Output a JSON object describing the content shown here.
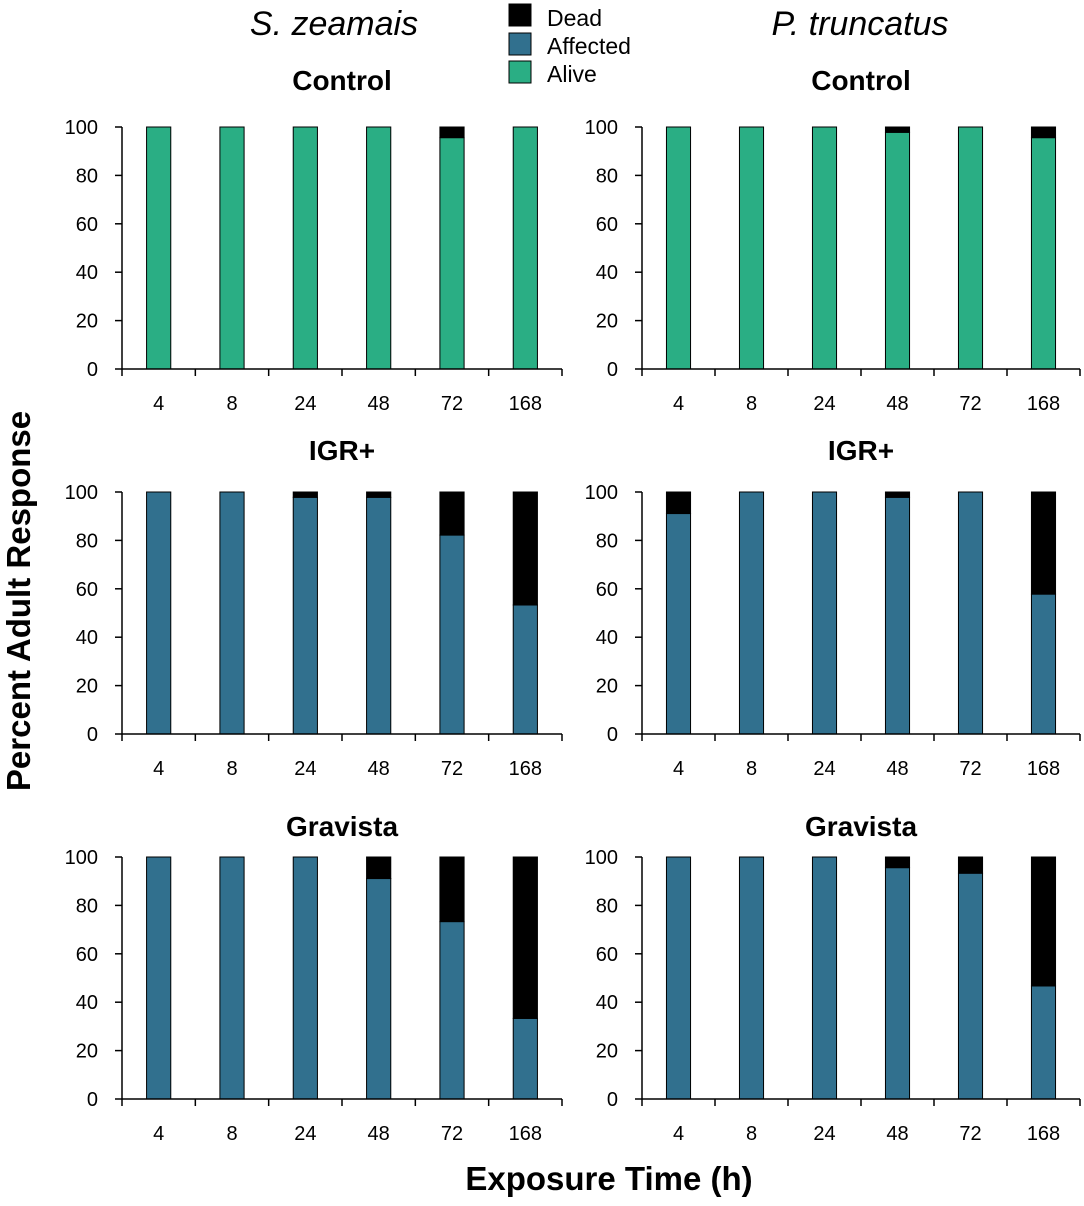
{
  "figure": {
    "species": [
      "S. zeamais",
      "P. truncatus"
    ],
    "ylabel": "Percent Adult Response",
    "xlabel": "Exposure Time (h)"
  },
  "legend": [
    {
      "label": "Dead",
      "color": "#000000"
    },
    {
      "label": "Affected",
      "color": "#31708E"
    },
    {
      "label": "Alive",
      "color": "#2AAE84"
    }
  ],
  "chart_data": [
    {
      "type": "bar",
      "stacked": true,
      "species": "S. zeamais",
      "title": "Control",
      "categories": [
        "4",
        "8",
        "24",
        "48",
        "72",
        "168"
      ],
      "ylim": [
        0,
        100
      ],
      "yticks": [
        0,
        20,
        40,
        60,
        80,
        100
      ],
      "series": [
        {
          "name": "Alive",
          "values": [
            100,
            100,
            100,
            100,
            95.6,
            100
          ]
        },
        {
          "name": "Affected",
          "values": [
            0,
            0,
            0,
            0,
            0,
            0
          ]
        },
        {
          "name": "Dead",
          "values": [
            0,
            0,
            0,
            0,
            4.4,
            0
          ]
        }
      ]
    },
    {
      "type": "bar",
      "stacked": true,
      "species": "P. truncatus",
      "title": "Control",
      "categories": [
        "4",
        "8",
        "24",
        "48",
        "72",
        "168"
      ],
      "ylim": [
        0,
        100
      ],
      "yticks": [
        0,
        20,
        40,
        60,
        80,
        100
      ],
      "series": [
        {
          "name": "Alive",
          "values": [
            100,
            100,
            100,
            97.8,
            100,
            95.6
          ]
        },
        {
          "name": "Affected",
          "values": [
            0,
            0,
            0,
            0,
            0,
            0
          ]
        },
        {
          "name": "Dead",
          "values": [
            0,
            0,
            0,
            2.2,
            0,
            4.4
          ]
        }
      ]
    },
    {
      "type": "bar",
      "stacked": true,
      "species": "S. zeamais",
      "title": "IGR+",
      "categories": [
        "4",
        "8",
        "24",
        "48",
        "72",
        "168"
      ],
      "ylim": [
        0,
        100
      ],
      "yticks": [
        0,
        20,
        40,
        60,
        80,
        100
      ],
      "series": [
        {
          "name": "Alive",
          "values": [
            0,
            0,
            0,
            0,
            0,
            0
          ]
        },
        {
          "name": "Affected",
          "values": [
            100,
            100,
            97.8,
            97.8,
            82.2,
            53.3
          ]
        },
        {
          "name": "Dead",
          "values": [
            0,
            0,
            2.2,
            2.2,
            17.8,
            46.7
          ]
        }
      ]
    },
    {
      "type": "bar",
      "stacked": true,
      "species": "P. truncatus",
      "title": "IGR+",
      "categories": [
        "4",
        "8",
        "24",
        "48",
        "72",
        "168"
      ],
      "ylim": [
        0,
        100
      ],
      "yticks": [
        0,
        20,
        40,
        60,
        80,
        100
      ],
      "series": [
        {
          "name": "Alive",
          "values": [
            0,
            0,
            0,
            0,
            0,
            0
          ]
        },
        {
          "name": "Affected",
          "values": [
            91.1,
            100,
            100,
            97.8,
            100,
            57.8
          ]
        },
        {
          "name": "Dead",
          "values": [
            8.9,
            0,
            0,
            2.2,
            0,
            42.2
          ]
        }
      ]
    },
    {
      "type": "bar",
      "stacked": true,
      "species": "S. zeamais",
      "title": "Gravista",
      "categories": [
        "4",
        "8",
        "24",
        "48",
        "72",
        "168"
      ],
      "ylim": [
        0,
        100
      ],
      "yticks": [
        0,
        20,
        40,
        60,
        80,
        100
      ],
      "series": [
        {
          "name": "Alive",
          "values": [
            0,
            0,
            0,
            0,
            0,
            0
          ]
        },
        {
          "name": "Affected",
          "values": [
            100,
            100,
            100,
            91.1,
            73.3,
            33.3
          ]
        },
        {
          "name": "Dead",
          "values": [
            0,
            0,
            0,
            8.9,
            26.7,
            66.7
          ]
        }
      ]
    },
    {
      "type": "bar",
      "stacked": true,
      "species": "P. truncatus",
      "title": "Gravista",
      "categories": [
        "4",
        "8",
        "24",
        "48",
        "72",
        "168"
      ],
      "ylim": [
        0,
        100
      ],
      "yticks": [
        0,
        20,
        40,
        60,
        80,
        100
      ],
      "series": [
        {
          "name": "Alive",
          "values": [
            0,
            0,
            0,
            0,
            0,
            0
          ]
        },
        {
          "name": "Affected",
          "values": [
            100,
            100,
            100,
            95.6,
            93.3,
            46.7
          ]
        },
        {
          "name": "Dead",
          "values": [
            0,
            0,
            0,
            4.4,
            6.7,
            53.3
          ]
        }
      ]
    }
  ]
}
